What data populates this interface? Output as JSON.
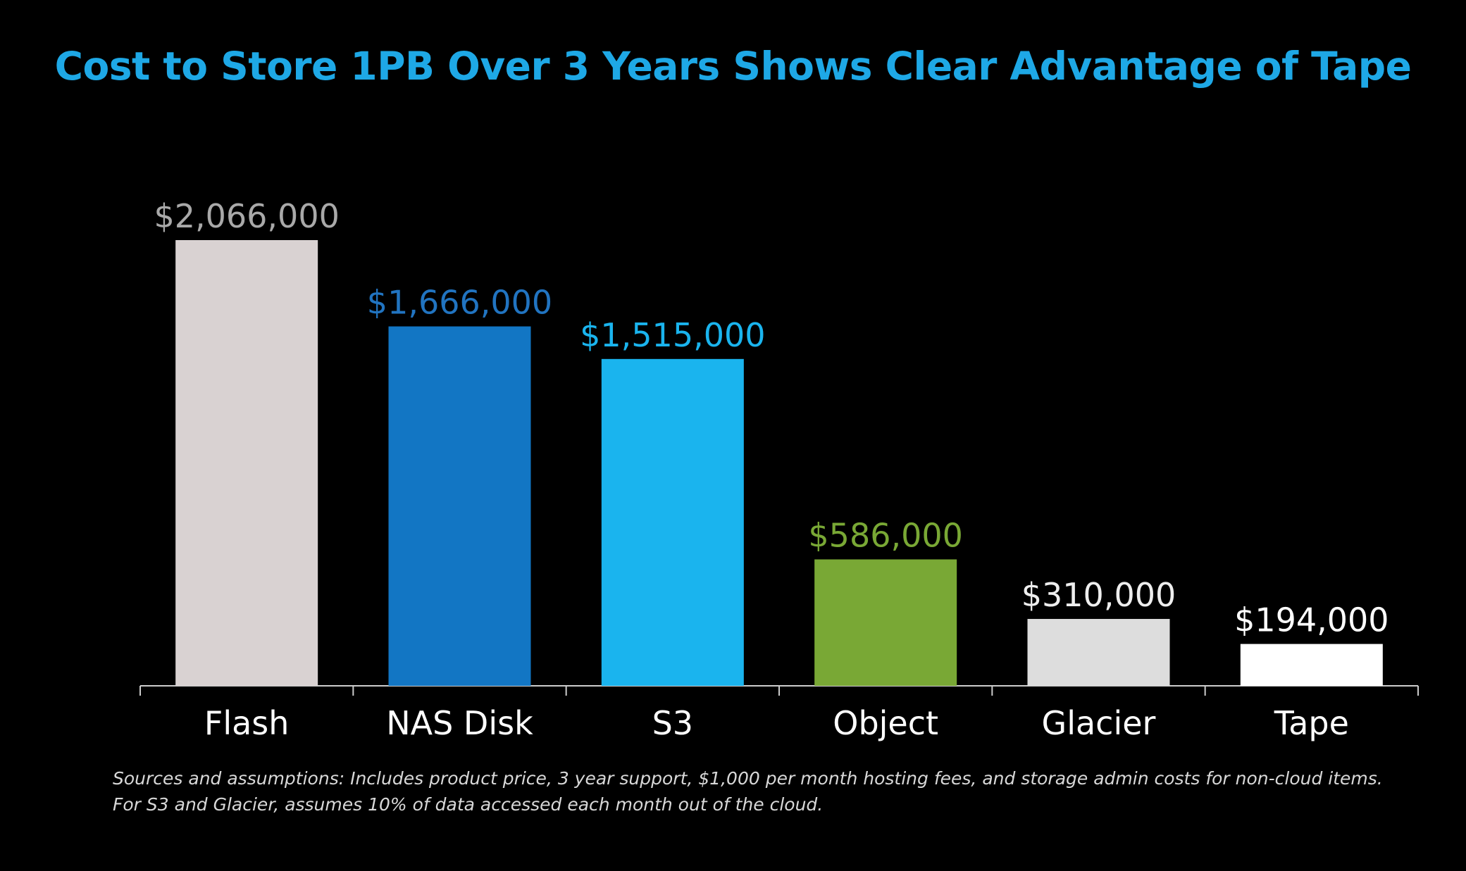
{
  "chart_data": {
    "type": "bar",
    "title": "Cost to Store 1PB Over 3 Years Shows Clear Advantage of Tape",
    "categories": [
      "Flash",
      "NAS Disk",
      "S3",
      "Object",
      "Glacier",
      "Tape"
    ],
    "values": [
      2066000,
      1666000,
      1515000,
      586000,
      310000,
      194000
    ],
    "value_labels": [
      "$2,066,000",
      "$1,666,000",
      "$1,515,000",
      "$586,000",
      "$310,000",
      "$194,000"
    ],
    "bar_colors": [
      "#d9d2d2",
      "#1276c4",
      "#1ab4ee",
      "#79a835",
      "#dddddd",
      "#ffffff"
    ],
    "label_colors": [
      "#a9a9a9",
      "#2174c1",
      "#1ab4ee",
      "#79a835",
      "#eeeeee",
      "#ffffff"
    ],
    "xlabel": "",
    "ylabel": "",
    "ylim": [
      0,
      2066000
    ],
    "grid": false,
    "legend": "none"
  },
  "colors": {
    "background": "#000000",
    "title": "#1ea8e6",
    "axis": "#cccccc",
    "category_label": "#ffffff",
    "footnote": "#d8d8d8"
  },
  "footnote": {
    "line1": "Sources and assumptions:  Includes product price, 3 year support, $1,000 per month hosting fees, and storage admin costs for non-cloud items.",
    "line2": "For S3 and Glacier, assumes 10% of data accessed each month out of the cloud."
  }
}
